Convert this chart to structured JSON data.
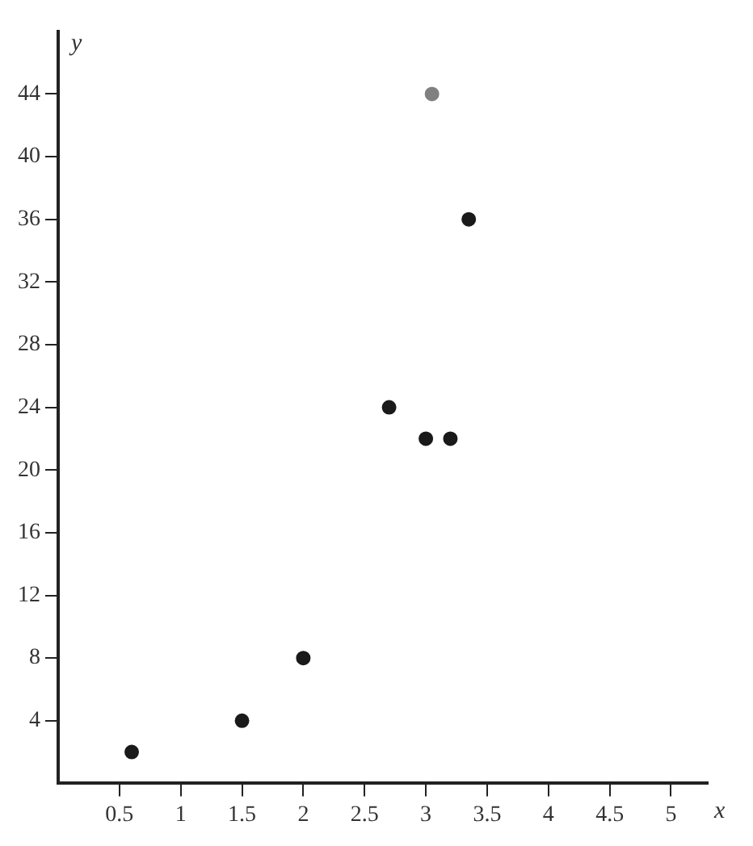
{
  "chart_data": {
    "type": "scatter",
    "xlabel": "x",
    "ylabel": "y",
    "series": [
      {
        "x": [
          0.6,
          1.5,
          2,
          2.7,
          3,
          3.2,
          3.05,
          3.35
        ],
        "values": [
          2,
          4,
          8,
          24,
          22,
          22,
          44,
          36
        ],
        "colors": [
          "#1a1a1a",
          "#1a1a1a",
          "#1a1a1a",
          "#1a1a1a",
          "#1a1a1a",
          "#1a1a1a",
          "#808080",
          "#1a1a1a"
        ]
      }
    ],
    "xlim": [
      0,
      5.3
    ],
    "ylim": [
      0,
      48
    ],
    "xticks": [
      0.5,
      1,
      1.5,
      2,
      2.5,
      3,
      3.5,
      4,
      4.5,
      5
    ],
    "yticks": [
      4,
      8,
      12,
      16,
      20,
      24,
      28,
      32,
      36,
      40,
      44
    ],
    "grid": false,
    "legend": false,
    "marker": "circle"
  }
}
